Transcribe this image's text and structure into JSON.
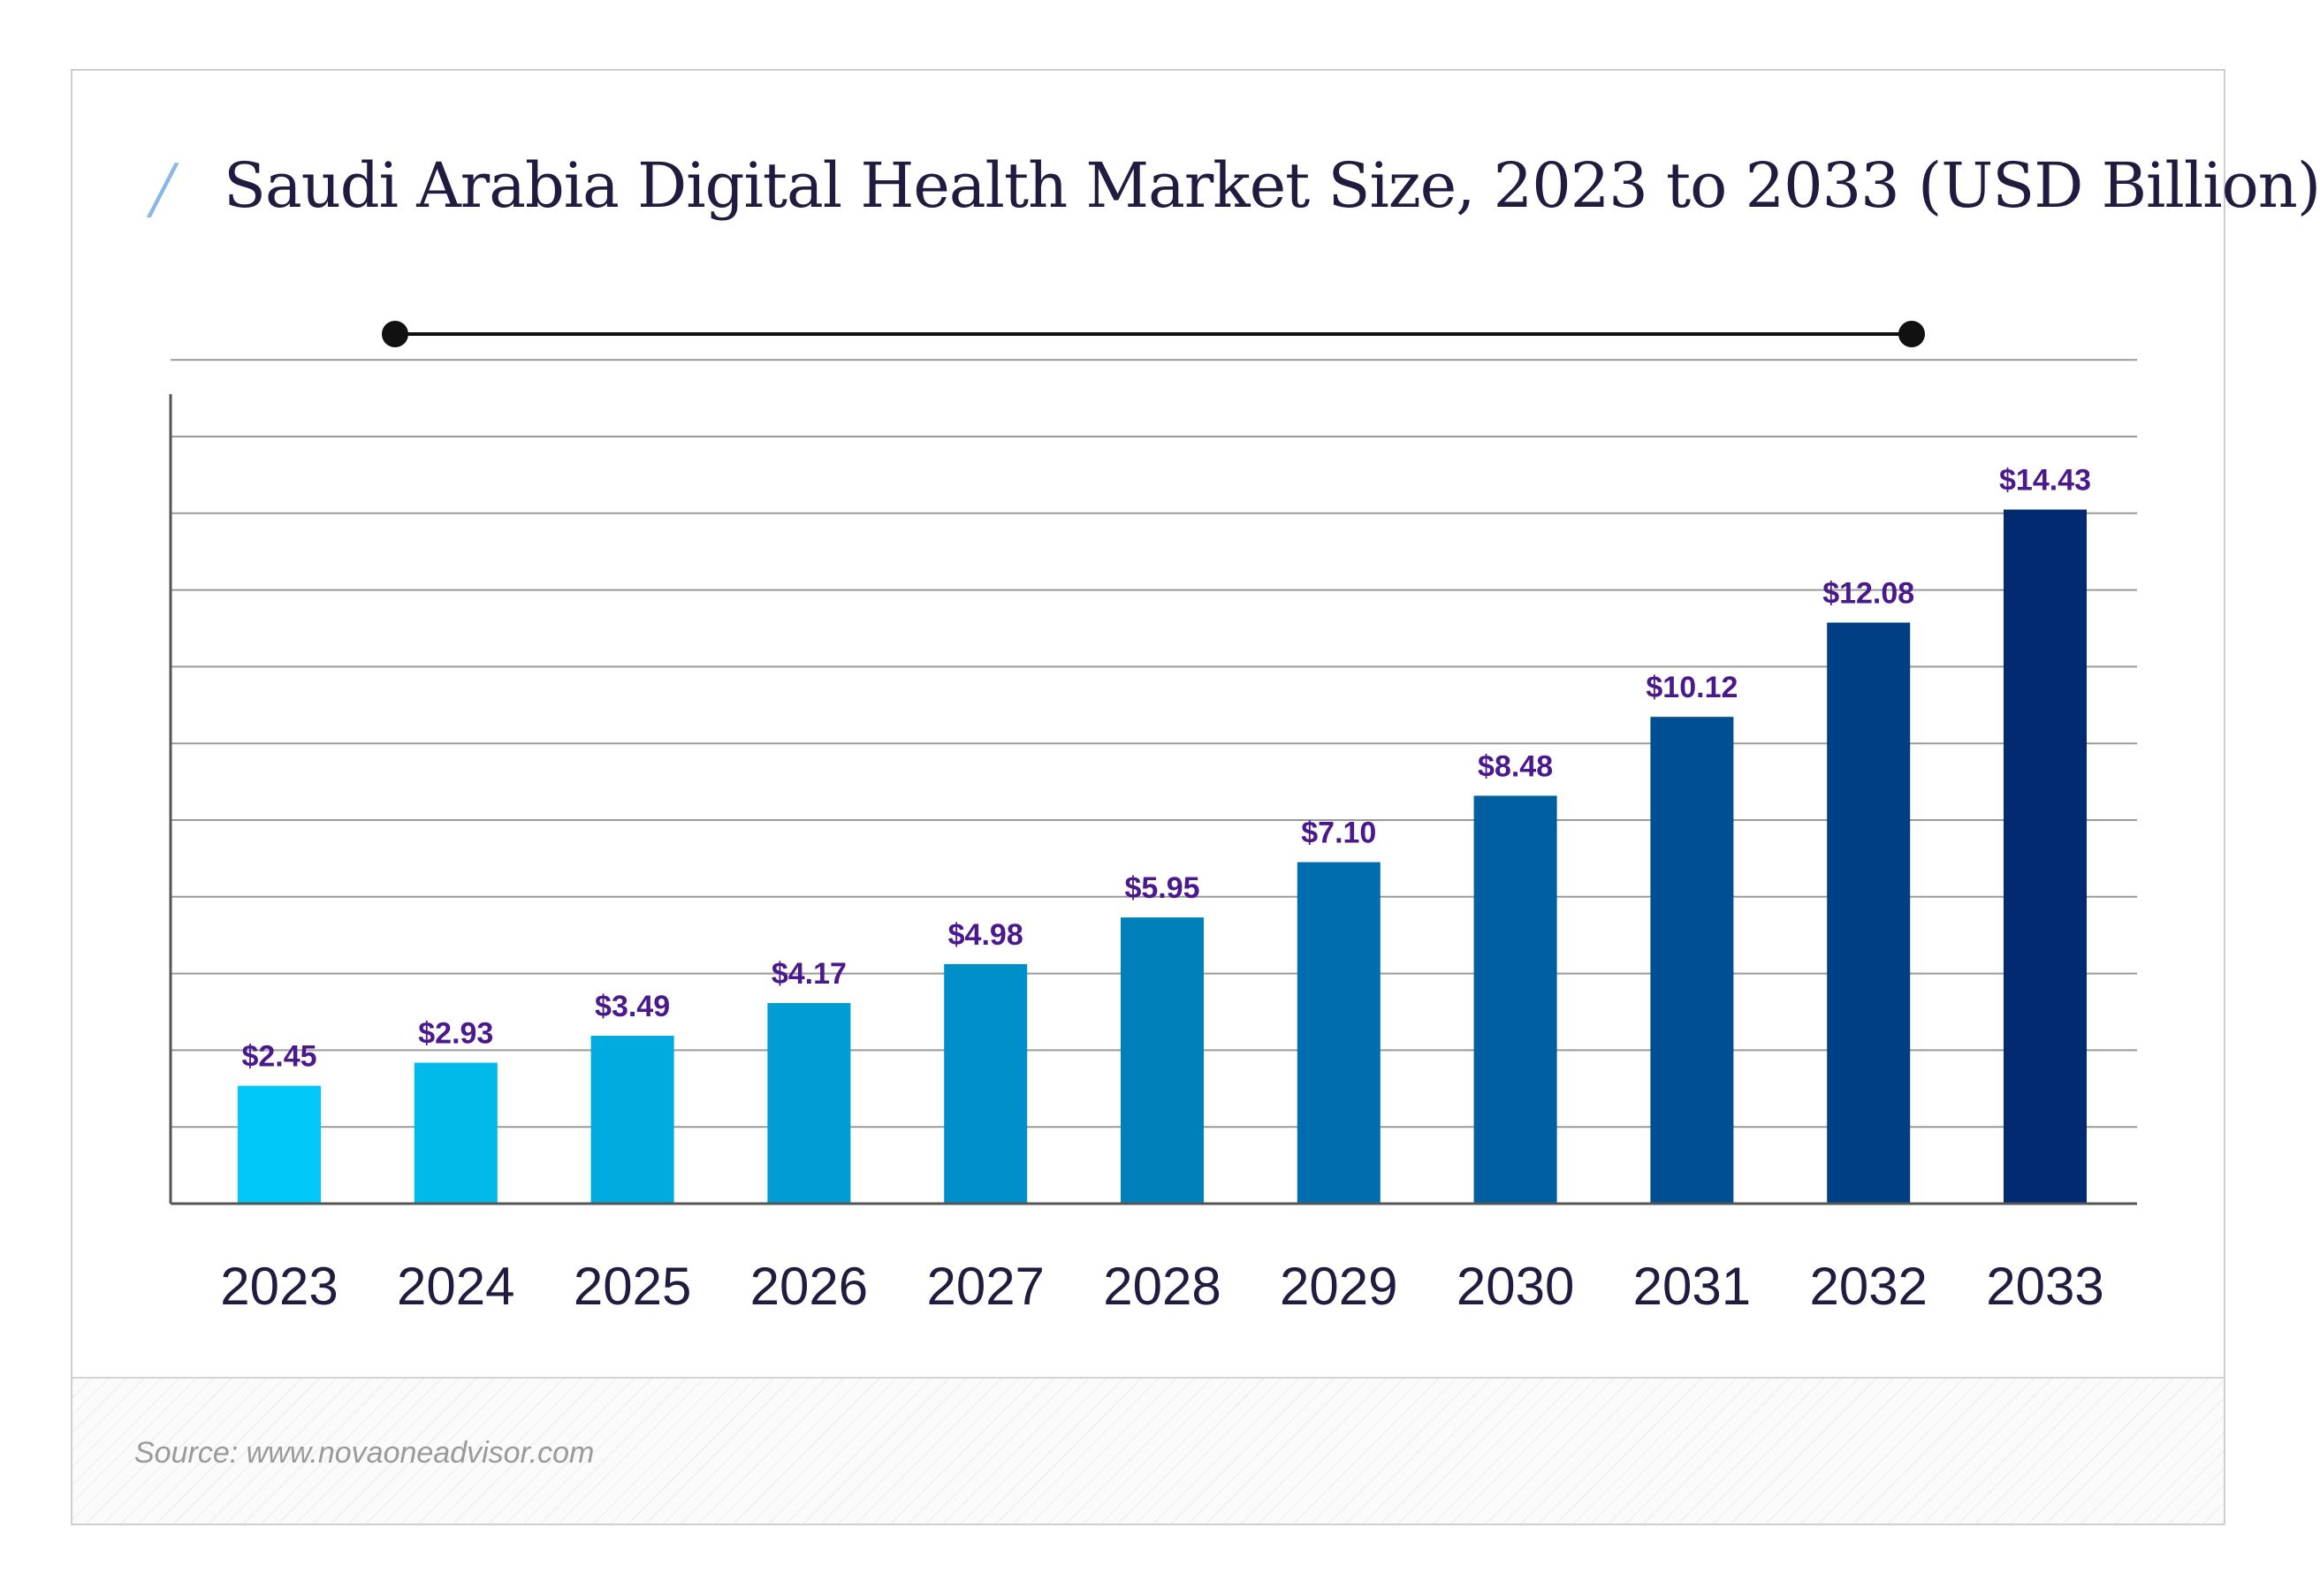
{
  "page": {
    "title_mark": "/",
    "title": "Saudi Arabia Digital Health Market Size, 2023 to 2033 (USD Billion)",
    "source": "Source: www.novaoneadvisor.com"
  },
  "chart_data": {
    "type": "bar",
    "title": "Saudi Arabia Digital Health Market Size, 2023 to 2033 (USD Billion)",
    "categories": [
      "2023",
      "2024",
      "2025",
      "2026",
      "2027",
      "2028",
      "2029",
      "2030",
      "2031",
      "2032",
      "2033"
    ],
    "values": [
      2.45,
      2.93,
      3.49,
      4.17,
      4.98,
      5.95,
      7.1,
      8.48,
      10.12,
      12.08,
      14.43
    ],
    "data_labels": [
      "$2.45",
      "$2.93",
      "$3.49",
      "$4.17",
      "$4.98",
      "$5.95",
      "$7.10",
      "$8.48",
      "$10.12",
      "$12.08",
      "$14.43"
    ],
    "bar_colors": [
      "#00c8f8",
      "#00bbea",
      "#00abe0",
      "#009dd5",
      "#008fc8",
      "#0080bb",
      "#006eae",
      "#005fa0",
      "#004e93",
      "#003f84",
      "#022a71"
    ],
    "label_color": "#4a1a8c",
    "xlabel": "",
    "ylabel": "",
    "ylim": [
      0,
      16.94
    ],
    "grid": true,
    "legend": "none",
    "slider_line": true
  }
}
